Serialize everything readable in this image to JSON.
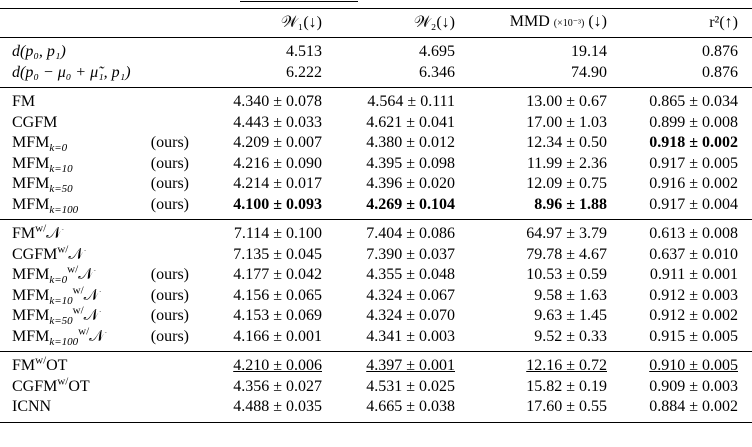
{
  "table": {
    "header": [
      [
        {
          "text": "𝒲₁(↓)"
        }
      ],
      [
        {
          "text": "𝒲₂(↓)"
        }
      ],
      [
        {
          "text": "MMD"
        },
        {
          "text": "(×10⁻³)",
          "small": true
        },
        {
          "text": "(↓)"
        }
      ],
      [
        {
          "text": "r²(↑)"
        }
      ]
    ],
    "groups": [
      {
        "rows": [
          {
            "label": {
              "name": "d(p₀, p₁)",
              "italic": true
            },
            "cells": [
              "4.513",
              "4.695",
              "19.14",
              "0.876"
            ]
          },
          {
            "label": {
              "name": "d(p₀ − μ₀ + μ̃₁, p₁)",
              "italic": true
            },
            "cells": [
              "6.222",
              "6.346",
              "74.90",
              "0.876"
            ]
          }
        ]
      },
      {
        "rows": [
          {
            "label": {
              "name": "FM"
            },
            "cells": [
              "4.340 ± 0.078",
              "4.564 ± 0.111",
              "13.00 ± 0.67",
              "0.865 ± 0.034"
            ]
          },
          {
            "label": {
              "name": "CGFM"
            },
            "cells": [
              "4.443 ± 0.033",
              "4.621 ± 0.041",
              "17.00 ± 1.03",
              "0.899 ± 0.008"
            ]
          },
          {
            "label": {
              "name": "MFM",
              "sub": "k=0",
              "tag": "(ours)"
            },
            "cells": [
              "4.209 ± 0.007",
              "4.380 ± 0.012",
              "12.34 ± 0.50",
              {
                "text": "0.918 ± 0.002",
                "style": "bold"
              }
            ]
          },
          {
            "label": {
              "name": "MFM",
              "sub": "k=10",
              "tag": "(ours)"
            },
            "cells": [
              "4.216 ± 0.090",
              "4.395 ± 0.098",
              "11.99 ± 2.36",
              "0.917 ± 0.005"
            ]
          },
          {
            "label": {
              "name": "MFM",
              "sub": "k=50",
              "tag": "(ours)"
            },
            "cells": [
              "4.214 ± 0.017",
              "4.396 ± 0.020",
              "12.09 ± 0.75",
              "0.916 ± 0.002"
            ]
          },
          {
            "label": {
              "name": "MFM",
              "sub": "k=100",
              "tag": "(ours)"
            },
            "cells": [
              {
                "text": "4.100 ± 0.093",
                "style": "bold"
              },
              {
                "text": "4.269 ± 0.104",
                "style": "bold"
              },
              {
                "text": "8.96 ± 1.88",
                "style": "bold"
              },
              "0.917 ± 0.004"
            ]
          }
        ]
      },
      {
        "rows": [
          {
            "label": {
              "name": "FM",
              "sup": "w/",
              "suffix": "𝒩"
            },
            "cells": [
              "7.114 ± 0.100",
              "7.404 ± 0.086",
              "64.97 ± 3.79",
              "0.613 ± 0.008"
            ]
          },
          {
            "label": {
              "name": "CGFM",
              "sup": "w/",
              "suffix": "𝒩"
            },
            "cells": [
              "7.135 ± 0.045",
              "7.390 ± 0.037",
              "79.78 ± 4.67",
              "0.637 ± 0.010"
            ]
          },
          {
            "label": {
              "name": "MFM",
              "sub": "k=0",
              "sup": "w/",
              "suffix": "𝒩",
              "tag": "(ours)"
            },
            "cells": [
              "4.177 ± 0.042",
              "4.355 ± 0.048",
              "10.53 ± 0.59",
              "0.911 ± 0.001"
            ]
          },
          {
            "label": {
              "name": "MFM",
              "sub": "k=10",
              "sup": "w/",
              "suffix": "𝒩",
              "tag": "(ours)"
            },
            "cells": [
              "4.156 ± 0.065",
              "4.324 ± 0.067",
              "9.58 ± 1.63",
              "0.912 ± 0.003"
            ]
          },
          {
            "label": {
              "name": "MFM",
              "sub": "k=50",
              "sup": "w/",
              "suffix": "𝒩",
              "tag": "(ours)"
            },
            "cells": [
              "4.153 ± 0.069",
              "4.324 ± 0.070",
              "9.63 ± 1.45",
              "0.912 ± 0.002"
            ]
          },
          {
            "label": {
              "name": "MFM",
              "sub": "k=100",
              "sup": "w/",
              "suffix": "𝒩",
              "tag": "(ours)"
            },
            "cells": [
              "4.166 ± 0.001",
              "4.341 ± 0.003",
              "9.52 ± 0.33",
              "0.915 ± 0.005"
            ]
          }
        ]
      },
      {
        "rows": [
          {
            "label": {
              "name": "FM",
              "sup": "w/",
              "suffix": "OT"
            },
            "cells": [
              {
                "text": "4.210 ± 0.006",
                "style": "underline"
              },
              {
                "text": "4.397 ± 0.001",
                "style": "underline"
              },
              {
                "text": "12.16 ± 0.72",
                "style": "underline"
              },
              {
                "text": "0.910 ± 0.005",
                "style": "underline"
              }
            ]
          },
          {
            "label": {
              "name": "CGFM",
              "sup": "w/",
              "suffix": "OT"
            },
            "cells": [
              "4.356 ± 0.027",
              "4.531 ± 0.025",
              "15.82 ± 0.19",
              "0.909 ± 0.003"
            ]
          },
          {
            "label": {
              "name": "ICNN"
            },
            "cells": [
              "4.488 ± 0.035",
              "4.665 ± 0.038",
              "17.60 ± 0.55",
              "0.884 ± 0.002"
            ]
          }
        ]
      }
    ]
  }
}
